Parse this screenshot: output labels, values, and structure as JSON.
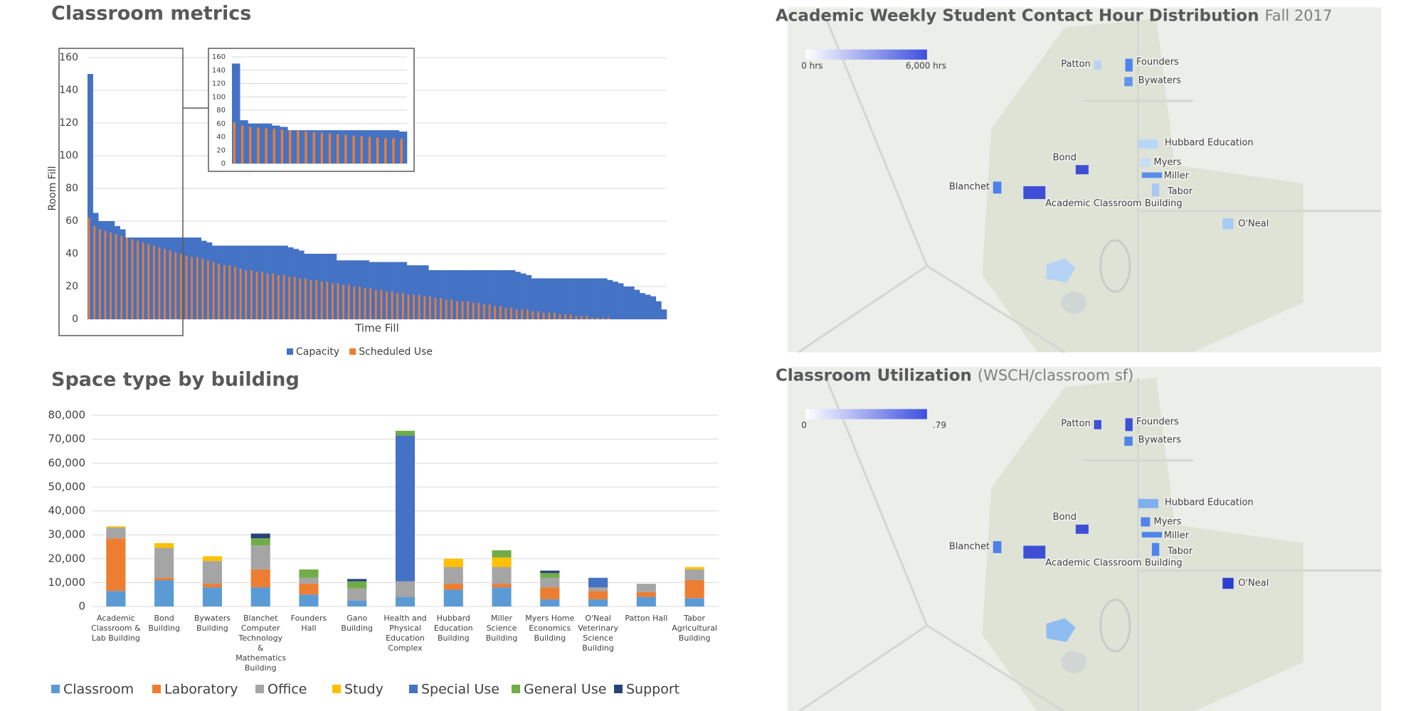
{
  "chart_data": [
    {
      "type": "bar",
      "title": "Classroom metrics",
      "y_label": "Room Fill",
      "x_label": "Time Fill",
      "stacked": false,
      "grid": true,
      "ylim": [
        0,
        160
      ],
      "yticks": [
        0,
        20,
        40,
        60,
        80,
        100,
        120,
        140,
        160
      ],
      "inset": {
        "ylim": [
          0,
          160
        ],
        "yticks": [
          0,
          20,
          40,
          60,
          80,
          100,
          120,
          140,
          160
        ]
      },
      "series": [
        {
          "name": "Capacity",
          "color": "#4472c4",
          "values": [
            150,
            65,
            60,
            60,
            60,
            57,
            55,
            50,
            50,
            50,
            50,
            50,
            50,
            50,
            50,
            50,
            50,
            50,
            50,
            50,
            50,
            48,
            47,
            45,
            45,
            45,
            45,
            45,
            45,
            45,
            45,
            45,
            45,
            45,
            45,
            45,
            45,
            44,
            43,
            42,
            40,
            40,
            40,
            40,
            40,
            40,
            36,
            36,
            36,
            36,
            36,
            36,
            35,
            35,
            35,
            35,
            35,
            35,
            35,
            33,
            33,
            33,
            33,
            30,
            30,
            30,
            30,
            30,
            30,
            30,
            30,
            30,
            30,
            30,
            30,
            30,
            30,
            30,
            30,
            29,
            28,
            27,
            25,
            25,
            25,
            25,
            25,
            25,
            25,
            25,
            25,
            25,
            25,
            25,
            25,
            25,
            24,
            23,
            22,
            20,
            20,
            18,
            16,
            15,
            14,
            11,
            6
          ]
        },
        {
          "name": "Scheduled Use",
          "color": "#ed7d31",
          "values": [
            62,
            57,
            55,
            54,
            53,
            52,
            51,
            50,
            49,
            48,
            47,
            46,
            45,
            44,
            43,
            42,
            41,
            40,
            39,
            38,
            38,
            37,
            36,
            35,
            34,
            33,
            33,
            32,
            31,
            30,
            30,
            29,
            29,
            28,
            28,
            27,
            27,
            26,
            26,
            25,
            25,
            24,
            24,
            23,
            23,
            22,
            22,
            21,
            21,
            20,
            20,
            19,
            19,
            18,
            18,
            17,
            17,
            16,
            16,
            15,
            15,
            15,
            14,
            14,
            13,
            13,
            12,
            12,
            11,
            11,
            11,
            10,
            10,
            9,
            9,
            8,
            8,
            7,
            7,
            6,
            6,
            6,
            5,
            5,
            4,
            4,
            4,
            3,
            3,
            3,
            2,
            2,
            2,
            1,
            1,
            1,
            1,
            0,
            0,
            0,
            0,
            0,
            0,
            0,
            0,
            0,
            0
          ]
        }
      ]
    },
    {
      "type": "bar",
      "title": "Space type by building",
      "stacked": true,
      "grid": true,
      "categories": [
        "Academic Classroom & Lab Building",
        "Bond Building",
        "Bywaters Building",
        "Blanchet Computer Technology & Mathematics Building",
        "Founders Hall",
        "Gano Building",
        "Health and Physical Education Complex",
        "Hubbard Education Building",
        "Miller Science Building",
        "Myers Home Economics Building",
        "O'Neal Veterinary Science Building",
        "Patton Hall",
        "Tabor Agricultural Building"
      ],
      "ylim": [
        0,
        80000
      ],
      "yticks": [
        0,
        {
          "value": 10000,
          "label": "10,000"
        },
        {
          "value": 20000,
          "label": "20,000"
        },
        {
          "value": 30000,
          "label": "30,000"
        },
        {
          "value": 40000,
          "label": "40,000"
        },
        {
          "value": 50000,
          "label": "50,000"
        },
        {
          "value": 60000,
          "label": "60,000"
        },
        {
          "value": 70000,
          "label": "70,000"
        },
        {
          "value": 80000,
          "label": "80,000"
        }
      ],
      "series": [
        {
          "name": "Classroom",
          "color": "#5b9bd5",
          "values": [
            6500,
            11000,
            8000,
            8000,
            5000,
            2500,
            4000,
            7000,
            8000,
            3000,
            3000,
            4000,
            3500
          ]
        },
        {
          "name": "Laboratory",
          "color": "#ed7d31",
          "values": [
            22000,
            1000,
            1500,
            7500,
            4500,
            0,
            0,
            2500,
            1500,
            5000,
            3500,
            2000,
            7500
          ]
        },
        {
          "name": "Office",
          "color": "#a5a5a5",
          "values": [
            4500,
            12500,
            9500,
            10000,
            2500,
            5000,
            6500,
            7000,
            7000,
            4000,
            1500,
            3500,
            4500
          ]
        },
        {
          "name": "Study",
          "color": "#ffc000",
          "values": [
            500,
            2000,
            2000,
            0,
            0,
            0,
            0,
            3500,
            4000,
            0,
            0,
            0,
            1000
          ]
        },
        {
          "name": "Special Use",
          "color": "#4472c4",
          "values": [
            0,
            0,
            0,
            0,
            0,
            0,
            61000,
            0,
            0,
            0,
            4000,
            0,
            0
          ]
        },
        {
          "name": "General Use",
          "color": "#70ad47",
          "values": [
            0,
            0,
            0,
            3000,
            3500,
            3000,
            2000,
            0,
            3000,
            2000,
            0,
            0,
            0
          ]
        },
        {
          "name": "Support",
          "color": "#264478",
          "values": [
            0,
            0,
            0,
            2000,
            0,
            1000,
            0,
            0,
            0,
            1000,
            0,
            0,
            0
          ]
        }
      ]
    }
  ],
  "maps": [
    {
      "title": "Academic Weekly Student Contact Hour Distribution",
      "subtitle": "Fall 2017",
      "legend_min": "0 hrs",
      "legend_max": "6,000 hrs",
      "buildings": [
        "Patton",
        "Founders",
        "Bywaters",
        "Hubbard Education",
        "Bond",
        "Myers",
        "Miller",
        "Tabor",
        "Blanchet",
        "Academic Classroom Building",
        "O'Neal"
      ]
    },
    {
      "title": "Classroom Utilization",
      "subtitle": "(WSCH/classroom sf)",
      "legend_min": "0",
      "legend_max": ".79",
      "buildings": [
        "Patton",
        "Founders",
        "Bywaters",
        "Hubbard Education",
        "Bond",
        "Myers",
        "Miller",
        "Tabor",
        "Blanchet",
        "Academic Classroom Building",
        "O'Neal"
      ]
    }
  ]
}
